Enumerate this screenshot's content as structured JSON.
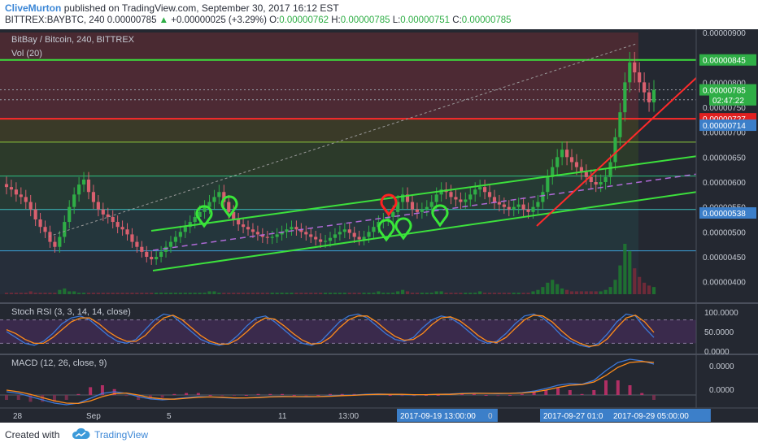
{
  "header": {
    "author": "CliveMurton",
    "published": "published on TradingView.com, September 30, 2017 16:12 EST",
    "symbol": "BITTREX:BAYBTC, 240",
    "last": "0.00000785",
    "change_arrow": "▲",
    "change": "+0.00000025 (+3.29%)",
    "o_label": "O:",
    "o": "0.00000762",
    "h_label": "H:",
    "h": "0.00000785",
    "l_label": "L:",
    "l": "0.00000751",
    "c_label": "C:",
    "c": "0.00000785"
  },
  "footer": {
    "created": "Created with",
    "brand": "TradingView",
    "logo_icon": "tradingview-cloud-icon"
  },
  "colors": {
    "background": "#242831",
    "up": "#2fae46",
    "down": "#d9606f",
    "trend_green": "#3ce03c",
    "trend_red": "#ff2a2a",
    "stoch_k": "#3c78d8",
    "stoch_d": "#ff8c1a",
    "macd": "#3c78d8",
    "signal": "#ff8c1a",
    "marker_green": "#39e639",
    "marker_red": "#ff2222"
  },
  "chart_data": [
    {
      "type": "candlestick",
      "title": "BitBay / Bitcoin, 240, BITTREX",
      "volume_label": "Vol (20)",
      "ylim": [
        3.75e-06,
        9e-06
      ],
      "y_ticks": [
        "0.00000900",
        "0.00000850",
        "0.00000800",
        "0.00000750",
        "0.00000700",
        "0.00000650",
        "0.00000600",
        "0.00000550",
        "0.00000500",
        "0.00000450",
        "0.00000400"
      ],
      "x_ticks": [
        "28",
        "Sep",
        "5",
        "11",
        "13:00",
        "2017-09-19 13:00:00",
        "0",
        "2017-09-27 01:0",
        "2017-09-29 05:00:00"
      ],
      "price_tags": [
        {
          "label": "0.00000845",
          "value": 8.45e-06,
          "color": "#2fae46"
        },
        {
          "label": "0.00000785",
          "value": 7.85e-06,
          "color": "#2fae46"
        },
        {
          "label": "02:47:22",
          "value": 7.65e-06,
          "color": "#2fae46"
        },
        {
          "label": "0.00000727",
          "value": 7.27e-06,
          "color": "#e02020"
        },
        {
          "label": "0.00000714",
          "value": 7.14e-06,
          "color": "#3c7fc9"
        },
        {
          "label": "0.00000538",
          "value": 5.38e-06,
          "color": "#3c7fc9"
        }
      ],
      "horizontal_lines": [
        {
          "value": 8.45e-06,
          "color": "#3ce03c"
        },
        {
          "value": 7.27e-06,
          "color": "#ff2a2a"
        },
        {
          "value": 6.8e-06,
          "color": "#8cc83c"
        },
        {
          "value": 6.12e-06,
          "color": "#2fbf7f"
        },
        {
          "value": 5.45e-06,
          "color": "#3cbfbf"
        },
        {
          "value": 4.62e-06,
          "color": "#3c9fd6"
        }
      ],
      "close": [
        5.9e-06,
        5.85e-06,
        5.75e-06,
        5.7e-06,
        5.6e-06,
        5.45e-06,
        5.25e-06,
        5.1e-06,
        5e-06,
        4.8e-06,
        4.7e-06,
        4.9e-06,
        5.2e-06,
        5.5e-06,
        5.75e-06,
        5.95e-06,
        6.05e-06,
        5.8e-06,
        5.6e-06,
        5.45e-06,
        5.35e-06,
        5.3e-06,
        5.2e-06,
        5.1e-06,
        5.05e-06,
        4.95e-06,
        4.8e-06,
        4.7e-06,
        4.6e-06,
        4.5e-06,
        4.45e-06,
        4.5e-06,
        4.6e-06,
        4.7e-06,
        4.8e-06,
        4.9e-06,
        5e-06,
        5.1e-06,
        5.2e-06,
        5.3e-06,
        5.4e-06,
        5.5e-06,
        5.6e-06,
        5.7e-06,
        5.8e-06,
        5.6e-06,
        5.4e-06,
        5.25e-06,
        5.15e-06,
        5.1e-06,
        5.05e-06,
        5e-06,
        4.95e-06,
        4.9e-06,
        4.88e-06,
        4.9e-06,
        4.95e-06,
        5e-06,
        5.05e-06,
        5.1e-06,
        5.05e-06,
        5e-06,
        4.95e-06,
        4.9e-06,
        4.85e-06,
        4.8e-06,
        4.82e-06,
        4.88e-06,
        4.95e-06,
        5e-06,
        5.05e-06,
        4.98e-06,
        4.9e-06,
        4.85e-06,
        4.9e-06,
        5e-06,
        5.1e-06,
        5.2e-06,
        5.25e-06,
        5.3e-06,
        5.4e-06,
        5.6e-06,
        5.75e-06,
        5.6e-06,
        5.45e-06,
        5.4e-06,
        5.45e-06,
        5.5e-06,
        5.6e-06,
        5.75e-06,
        5.85e-06,
        5.8e-06,
        5.7e-06,
        5.65e-06,
        5.6e-06,
        5.65e-06,
        5.75e-06,
        5.85e-06,
        5.9e-06,
        5.8e-06,
        5.7e-06,
        5.6e-06,
        5.55e-06,
        5.5e-06,
        5.45e-06,
        5.5e-06,
        5.55e-06,
        5.45e-06,
        5.4e-06,
        5.5e-06,
        5.6e-06,
        5.8e-06,
        6.1e-06,
        6.3e-06,
        6.5e-06,
        6.65e-06,
        6.5e-06,
        6.4e-06,
        6.3e-06,
        6.2e-06,
        6.1e-06,
        6e-06,
        5.95e-06,
        6e-06,
        6.1e-06,
        6.4e-06,
        6.9e-06,
        7.4e-06,
        8e-06,
        8.4e-06,
        8.2e-06,
        8e-06,
        7.8e-06,
        7.6e-06,
        7.85e-06
      ],
      "volume": [
        1,
        1,
        1,
        1,
        1,
        2,
        1,
        1,
        1,
        1,
        1,
        3,
        4,
        2,
        2,
        1,
        1,
        1,
        1,
        1,
        1,
        1,
        1,
        1,
        1,
        1,
        1,
        1,
        1,
        1,
        1,
        1,
        1,
        1,
        1,
        1,
        1,
        1,
        1,
        1,
        1,
        1,
        2,
        2,
        1,
        1,
        1,
        1,
        1,
        1,
        1,
        1,
        1,
        1,
        1,
        1,
        1,
        1,
        1,
        1,
        1,
        1,
        1,
        1,
        1,
        1,
        1,
        1,
        1,
        1,
        1,
        1,
        1,
        1,
        1,
        1,
        1,
        2,
        1,
        1,
        1,
        2,
        3,
        2,
        1,
        1,
        1,
        1,
        1,
        2,
        2,
        1,
        1,
        1,
        1,
        1,
        1,
        1,
        2,
        1,
        1,
        1,
        1,
        1,
        1,
        1,
        1,
        1,
        1,
        2,
        3,
        5,
        8,
        10,
        7,
        4,
        3,
        2,
        2,
        2,
        2,
        2,
        2,
        2,
        3,
        5,
        10,
        20,
        35,
        30,
        18,
        12,
        8,
        6,
        5
      ]
    },
    {
      "type": "line",
      "title": "Stoch RSI (3, 3, 14, 14, close)",
      "ylim": [
        0,
        100
      ],
      "y_ticks": [
        "100.0000",
        "50.0000",
        "0.0000"
      ],
      "series": [
        {
          "name": "K",
          "values": [
            50,
            35,
            20,
            15,
            25,
            45,
            70,
            85,
            90,
            80,
            60,
            40,
            25,
            20,
            30,
            55,
            80,
            95,
            90,
            70,
            50,
            30,
            20,
            15,
            20,
            40,
            65,
            85,
            90,
            75,
            55,
            35,
            20,
            15,
            25,
            50,
            75,
            90,
            95,
            85,
            65,
            45,
            30,
            25,
            35,
            60,
            80,
            90,
            85,
            70,
            50,
            30,
            20,
            25,
            45,
            70,
            90,
            95,
            85,
            65,
            40,
            25,
            15,
            10,
            20,
            45,
            75,
            95,
            90,
            60,
            35
          ]
        },
        {
          "name": "D",
          "values": [
            55,
            45,
            30,
            20,
            20,
            35,
            55,
            75,
            85,
            85,
            70,
            50,
            35,
            25,
            25,
            40,
            65,
            85,
            92,
            80,
            60,
            40,
            25,
            18,
            18,
            30,
            50,
            72,
            85,
            82,
            65,
            45,
            28,
            18,
            20,
            35,
            60,
            80,
            90,
            90,
            75,
            55,
            38,
            28,
            30,
            45,
            68,
            85,
            88,
            78,
            60,
            40,
            25,
            22,
            35,
            58,
            80,
            92,
            90,
            75,
            52,
            32,
            20,
            12,
            15,
            32,
            60,
            85,
            92,
            75,
            48
          ]
        }
      ]
    },
    {
      "type": "line",
      "title": "MACD (12, 26, close, 9)",
      "y_ticks": [
        "0.0000",
        "0.0000"
      ],
      "series": [
        {
          "name": "MACD",
          "values": [
            0.1,
            0.05,
            -0.05,
            -0.15,
            -0.25,
            -0.3,
            -0.25,
            -0.1,
            0.05,
            0.1,
            0.05,
            -0.05,
            -0.12,
            -0.15,
            -0.12,
            -0.08,
            -0.05,
            -0.06,
            -0.08,
            -0.1,
            -0.09,
            -0.07,
            -0.05,
            -0.04,
            -0.05,
            -0.06,
            -0.05,
            -0.03,
            -0.01,
            0.0,
            0.02,
            0.03,
            0.02,
            0.01,
            0.0,
            0.01,
            0.02,
            0.03,
            0.05,
            0.06,
            0.05,
            0.04,
            0.05,
            0.07,
            0.12,
            0.2,
            0.3,
            0.35,
            0.33,
            0.45,
            0.75,
            1.0,
            1.1,
            1.05,
            0.95
          ]
        },
        {
          "name": "Signal",
          "values": [
            0.15,
            0.1,
            0.02,
            -0.08,
            -0.18,
            -0.25,
            -0.26,
            -0.18,
            -0.05,
            0.04,
            0.06,
            0.0,
            -0.08,
            -0.12,
            -0.13,
            -0.1,
            -0.07,
            -0.06,
            -0.07,
            -0.09,
            -0.09,
            -0.08,
            -0.06,
            -0.05,
            -0.05,
            -0.05,
            -0.05,
            -0.04,
            -0.02,
            -0.01,
            0.01,
            0.02,
            0.02,
            0.02,
            0.01,
            0.01,
            0.02,
            0.02,
            0.04,
            0.05,
            0.05,
            0.05,
            0.05,
            0.06,
            0.09,
            0.15,
            0.23,
            0.3,
            0.32,
            0.4,
            0.6,
            0.85,
            1.0,
            1.03,
            1.0
          ]
        }
      ]
    }
  ]
}
